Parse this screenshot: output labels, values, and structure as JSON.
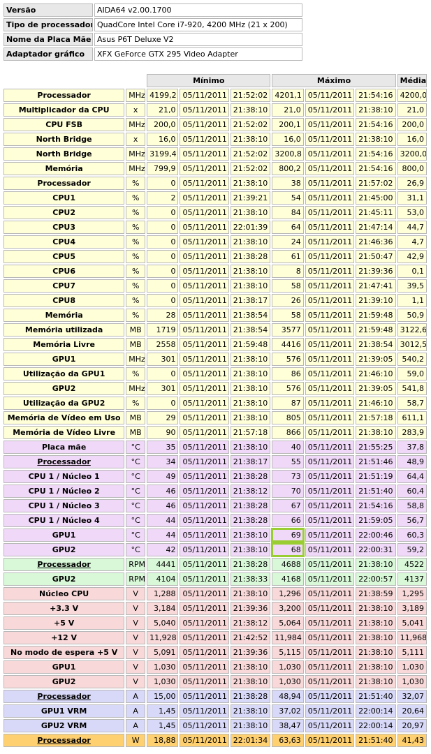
{
  "info": [
    {
      "key": "Versão",
      "value": "AIDA64 v2.00.1700"
    },
    {
      "key": "Tipo de processador",
      "value": "QuadCore Intel Core i7-920, 4200 MHz (21 x 200)"
    },
    {
      "key": "Nome da Placa Mãe",
      "value": "Asus P6T Deluxe V2"
    },
    {
      "key": "Adaptador gráfico",
      "value": "XFX GeForce GTX 295 Video Adapter"
    }
  ],
  "headers": {
    "min": "Mínimo",
    "max": "Máximo",
    "avg": "Média"
  },
  "colors": {
    "yellow": "#ffffd8",
    "purple": "#f0d8f8",
    "green": "#d8f8d8",
    "red": "#f8d8d8",
    "blue": "#d8d8f8",
    "orange": "#ffd070"
  },
  "rows": [
    {
      "name": "Processador",
      "unit": "MHz",
      "min": "4199,2",
      "min_date": "05/11/2011",
      "min_time": "21:52:02",
      "max": "4201,1",
      "max_date": "05/11/2011",
      "max_time": "21:54:16",
      "avg": "4200,0",
      "color": "yellow"
    },
    {
      "name": "Multiplicador da CPU",
      "unit": "x",
      "min": "21,0",
      "min_date": "05/11/2011",
      "min_time": "21:38:10",
      "max": "21,0",
      "max_date": "05/11/2011",
      "max_time": "21:38:10",
      "avg": "21,0",
      "color": "yellow"
    },
    {
      "name": "CPU FSB",
      "unit": "MHz",
      "min": "200,0",
      "min_date": "05/11/2011",
      "min_time": "21:52:02",
      "max": "200,1",
      "max_date": "05/11/2011",
      "max_time": "21:54:16",
      "avg": "200,0",
      "color": "yellow"
    },
    {
      "name": "North Bridge",
      "unit": "x",
      "min": "16,0",
      "min_date": "05/11/2011",
      "min_time": "21:38:10",
      "max": "16,0",
      "max_date": "05/11/2011",
      "max_time": "21:38:10",
      "avg": "16,0",
      "color": "yellow"
    },
    {
      "name": "North Bridge",
      "unit": "MHz",
      "min": "3199,4",
      "min_date": "05/11/2011",
      "min_time": "21:52:02",
      "max": "3200,8",
      "max_date": "05/11/2011",
      "max_time": "21:54:16",
      "avg": "3200,0",
      "color": "yellow"
    },
    {
      "name": "Memória",
      "unit": "MHz",
      "min": "799,9",
      "min_date": "05/11/2011",
      "min_time": "21:52:02",
      "max": "800,2",
      "max_date": "05/11/2011",
      "max_time": "21:54:16",
      "avg": "800,0",
      "color": "yellow"
    },
    {
      "name": "Processador",
      "unit": "%",
      "min": "0",
      "min_date": "05/11/2011",
      "min_time": "21:38:10",
      "max": "38",
      "max_date": "05/11/2011",
      "max_time": "21:57:02",
      "avg": "26,9",
      "color": "yellow"
    },
    {
      "name": "CPU1",
      "unit": "%",
      "min": "2",
      "min_date": "05/11/2011",
      "min_time": "21:39:21",
      "max": "54",
      "max_date": "05/11/2011",
      "max_time": "21:45:00",
      "avg": "31,1",
      "color": "yellow"
    },
    {
      "name": "CPU2",
      "unit": "%",
      "min": "0",
      "min_date": "05/11/2011",
      "min_time": "21:38:10",
      "max": "84",
      "max_date": "05/11/2011",
      "max_time": "21:45:11",
      "avg": "53,0",
      "color": "yellow"
    },
    {
      "name": "CPU3",
      "unit": "%",
      "min": "0",
      "min_date": "05/11/2011",
      "min_time": "22:01:39",
      "max": "64",
      "max_date": "05/11/2011",
      "max_time": "21:47:14",
      "avg": "44,7",
      "color": "yellow"
    },
    {
      "name": "CPU4",
      "unit": "%",
      "min": "0",
      "min_date": "05/11/2011",
      "min_time": "21:38:10",
      "max": "24",
      "max_date": "05/11/2011",
      "max_time": "21:46:36",
      "avg": "4,7",
      "color": "yellow"
    },
    {
      "name": "CPU5",
      "unit": "%",
      "min": "0",
      "min_date": "05/11/2011",
      "min_time": "21:38:28",
      "max": "61",
      "max_date": "05/11/2011",
      "max_time": "21:50:47",
      "avg": "42,9",
      "color": "yellow"
    },
    {
      "name": "CPU6",
      "unit": "%",
      "min": "0",
      "min_date": "05/11/2011",
      "min_time": "21:38:10",
      "max": "8",
      "max_date": "05/11/2011",
      "max_time": "21:39:36",
      "avg": "0,1",
      "color": "yellow"
    },
    {
      "name": "CPU7",
      "unit": "%",
      "min": "0",
      "min_date": "05/11/2011",
      "min_time": "21:38:10",
      "max": "58",
      "max_date": "05/11/2011",
      "max_time": "21:47:41",
      "avg": "39,5",
      "color": "yellow"
    },
    {
      "name": "CPU8",
      "unit": "%",
      "min": "0",
      "min_date": "05/11/2011",
      "min_time": "21:38:17",
      "max": "26",
      "max_date": "05/11/2011",
      "max_time": "21:39:10",
      "avg": "1,1",
      "color": "yellow"
    },
    {
      "name": "Memória",
      "unit": "%",
      "min": "28",
      "min_date": "05/11/2011",
      "min_time": "21:38:54",
      "max": "58",
      "max_date": "05/11/2011",
      "max_time": "21:59:48",
      "avg": "50,9",
      "color": "yellow"
    },
    {
      "name": "Memória utilizada",
      "unit": "MB",
      "min": "1719",
      "min_date": "05/11/2011",
      "min_time": "21:38:54",
      "max": "3577",
      "max_date": "05/11/2011",
      "max_time": "21:59:48",
      "avg": "3122,6",
      "color": "yellow"
    },
    {
      "name": "Memória Livre",
      "unit": "MB",
      "min": "2558",
      "min_date": "05/11/2011",
      "min_time": "21:59:48",
      "max": "4416",
      "max_date": "05/11/2011",
      "max_time": "21:38:54",
      "avg": "3012,5",
      "color": "yellow"
    },
    {
      "name": "GPU1",
      "unit": "MHz",
      "min": "301",
      "min_date": "05/11/2011",
      "min_time": "21:38:10",
      "max": "576",
      "max_date": "05/11/2011",
      "max_time": "21:39:05",
      "avg": "540,2",
      "color": "yellow"
    },
    {
      "name": "Utilização da GPU1",
      "unit": "%",
      "min": "0",
      "min_date": "05/11/2011",
      "min_time": "21:38:10",
      "max": "86",
      "max_date": "05/11/2011",
      "max_time": "21:46:10",
      "avg": "59,0",
      "color": "yellow"
    },
    {
      "name": "GPU2",
      "unit": "MHz",
      "min": "301",
      "min_date": "05/11/2011",
      "min_time": "21:38:10",
      "max": "576",
      "max_date": "05/11/2011",
      "max_time": "21:39:05",
      "avg": "541,8",
      "color": "yellow"
    },
    {
      "name": "Utilização da GPU2",
      "unit": "%",
      "min": "0",
      "min_date": "05/11/2011",
      "min_time": "21:38:10",
      "max": "87",
      "max_date": "05/11/2011",
      "max_time": "21:46:10",
      "avg": "58,7",
      "color": "yellow"
    },
    {
      "name": "Memória de Vídeo em Uso",
      "unit": "MB",
      "min": "29",
      "min_date": "05/11/2011",
      "min_time": "21:38:10",
      "max": "805",
      "max_date": "05/11/2011",
      "max_time": "21:57:18",
      "avg": "611,1",
      "color": "yellow"
    },
    {
      "name": "Memória de Vídeo Livre",
      "unit": "MB",
      "min": "90",
      "min_date": "05/11/2011",
      "min_time": "21:57:18",
      "max": "866",
      "max_date": "05/11/2011",
      "max_time": "21:38:10",
      "avg": "283,9",
      "color": "yellow"
    },
    {
      "name": "Placa mãe",
      "unit": "°C",
      "min": "35",
      "min_date": "05/11/2011",
      "min_time": "21:38:10",
      "max": "40",
      "max_date": "05/11/2011",
      "max_time": "21:55:25",
      "avg": "37,8",
      "color": "purple"
    },
    {
      "name": "Processador",
      "unit": "°C",
      "min": "34",
      "min_date": "05/11/2011",
      "min_time": "21:38:17",
      "max": "55",
      "max_date": "05/11/2011",
      "max_time": "21:51:46",
      "avg": "48,9",
      "color": "purple",
      "underline": true
    },
    {
      "name": "CPU 1 / Núcleo 1",
      "unit": "°C",
      "min": "49",
      "min_date": "05/11/2011",
      "min_time": "21:38:28",
      "max": "73",
      "max_date": "05/11/2011",
      "max_time": "21:51:19",
      "avg": "64,4",
      "color": "purple"
    },
    {
      "name": "CPU 1 / Núcleo 2",
      "unit": "°C",
      "min": "46",
      "min_date": "05/11/2011",
      "min_time": "21:38:12",
      "max": "70",
      "max_date": "05/11/2011",
      "max_time": "21:51:40",
      "avg": "60,4",
      "color": "purple"
    },
    {
      "name": "CPU 1 / Núcleo 3",
      "unit": "°C",
      "min": "46",
      "min_date": "05/11/2011",
      "min_time": "21:38:28",
      "max": "67",
      "max_date": "05/11/2011",
      "max_time": "21:54:16",
      "avg": "58,8",
      "color": "purple"
    },
    {
      "name": "CPU 1 / Núcleo 4",
      "unit": "°C",
      "min": "44",
      "min_date": "05/11/2011",
      "min_time": "21:38:28",
      "max": "66",
      "max_date": "05/11/2011",
      "max_time": "21:59:05",
      "avg": "56,7",
      "color": "purple"
    },
    {
      "name": "GPU1",
      "unit": "°C",
      "min": "44",
      "min_date": "05/11/2011",
      "min_time": "21:38:10",
      "max": "69",
      "max_date": "05/11/2011",
      "max_time": "22:00:46",
      "avg": "60,3",
      "color": "purple",
      "highlight": true
    },
    {
      "name": "GPU2",
      "unit": "°C",
      "min": "42",
      "min_date": "05/11/2011",
      "min_time": "21:38:10",
      "max": "68",
      "max_date": "05/11/2011",
      "max_time": "22:00:31",
      "avg": "59,2",
      "color": "purple",
      "highlight": true
    },
    {
      "name": "Processador",
      "unit": "RPM",
      "min": "4441",
      "min_date": "05/11/2011",
      "min_time": "21:38:28",
      "max": "4688",
      "max_date": "05/11/2011",
      "max_time": "21:38:10",
      "avg": "4522",
      "color": "green",
      "underline": true
    },
    {
      "name": "GPU2",
      "unit": "RPM",
      "min": "4104",
      "min_date": "05/11/2011",
      "min_time": "21:38:33",
      "max": "4168",
      "max_date": "05/11/2011",
      "max_time": "22:00:57",
      "avg": "4137",
      "color": "green"
    },
    {
      "name": "Núcleo CPU",
      "unit": "V",
      "min": "1,288",
      "min_date": "05/11/2011",
      "min_time": "21:38:10",
      "max": "1,296",
      "max_date": "05/11/2011",
      "max_time": "21:38:59",
      "avg": "1,295",
      "color": "red"
    },
    {
      "name": "+3.3 V",
      "unit": "V",
      "min": "3,184",
      "min_date": "05/11/2011",
      "min_time": "21:39:36",
      "max": "3,200",
      "max_date": "05/11/2011",
      "max_time": "21:38:10",
      "avg": "3,189",
      "color": "red"
    },
    {
      "name": "+5 V",
      "unit": "V",
      "min": "5,040",
      "min_date": "05/11/2011",
      "min_time": "21:38:12",
      "max": "5,064",
      "max_date": "05/11/2011",
      "max_time": "21:38:10",
      "avg": "5,041",
      "color": "red"
    },
    {
      "name": "+12 V",
      "unit": "V",
      "min": "11,928",
      "min_date": "05/11/2011",
      "min_time": "21:42:52",
      "max": "11,984",
      "max_date": "05/11/2011",
      "max_time": "21:38:10",
      "avg": "11,968",
      "color": "red"
    },
    {
      "name": "No modo de espera +5 V",
      "unit": "V",
      "min": "5,091",
      "min_date": "05/11/2011",
      "min_time": "21:39:36",
      "max": "5,115",
      "max_date": "05/11/2011",
      "max_time": "21:38:10",
      "avg": "5,111",
      "color": "red"
    },
    {
      "name": "GPU1",
      "unit": "V",
      "min": "1,030",
      "min_date": "05/11/2011",
      "min_time": "21:38:10",
      "max": "1,030",
      "max_date": "05/11/2011",
      "max_time": "21:38:10",
      "avg": "1,030",
      "color": "red"
    },
    {
      "name": "GPU2",
      "unit": "V",
      "min": "1,030",
      "min_date": "05/11/2011",
      "min_time": "21:38:10",
      "max": "1,030",
      "max_date": "05/11/2011",
      "max_time": "21:38:10",
      "avg": "1,030",
      "color": "red"
    },
    {
      "name": "Processador",
      "unit": "A",
      "min": "15,00",
      "min_date": "05/11/2011",
      "min_time": "21:38:28",
      "max": "48,94",
      "max_date": "05/11/2011",
      "max_time": "21:51:40",
      "avg": "32,07",
      "color": "blue",
      "underline": true
    },
    {
      "name": "GPU1 VRM",
      "unit": "A",
      "min": "1,45",
      "min_date": "05/11/2011",
      "min_time": "21:38:10",
      "max": "37,02",
      "max_date": "05/11/2011",
      "max_time": "22:00:14",
      "avg": "20,64",
      "color": "blue"
    },
    {
      "name": "GPU2 VRM",
      "unit": "A",
      "min": "1,45",
      "min_date": "05/11/2011",
      "min_time": "21:38:10",
      "max": "38,47",
      "max_date": "05/11/2011",
      "max_time": "22:00:14",
      "avg": "20,97",
      "color": "blue"
    },
    {
      "name": "Processador",
      "unit": "W",
      "min": "18,88",
      "min_date": "05/11/2011",
      "min_time": "22:01:34",
      "max": "63,63",
      "max_date": "05/11/2011",
      "max_time": "21:51:40",
      "avg": "41,43",
      "color": "orange",
      "underline": true
    }
  ]
}
